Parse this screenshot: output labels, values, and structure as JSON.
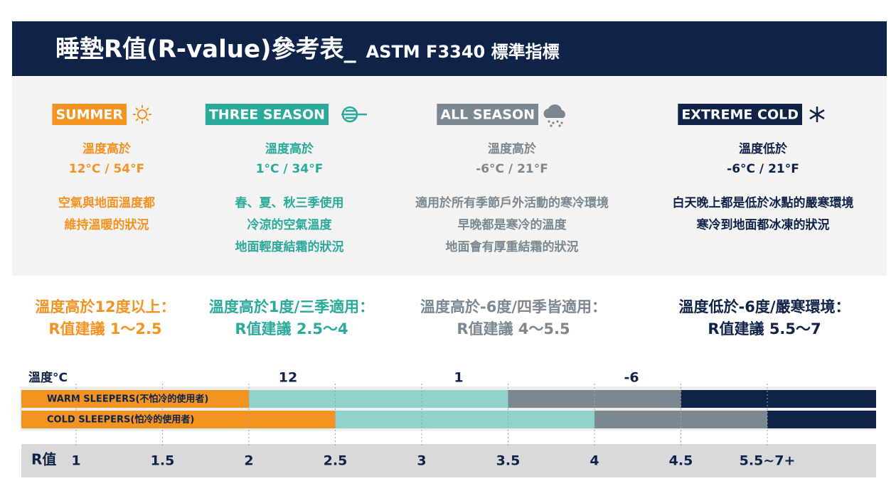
{
  "header": {
    "title": "睡墊R值(R-value)參考表_",
    "subtitle": "ASTM F3340 標準指標"
  },
  "seasons": [
    {
      "badge": "SUMMER",
      "color": "#f39322",
      "temp_label": "溫度高於",
      "temp": "12°C / 54°F",
      "desc": [
        "空氣與地面溫度都",
        "維持溫暖的狀況"
      ]
    },
    {
      "badge": "THREE SEASON",
      "color": "#2aaa9a",
      "temp_label": "溫度高於",
      "temp": "1°C / 34°F",
      "desc": [
        "春、夏、秋三季使用",
        "冷涼的空氣溫度",
        "地面輕度結霜的狀況"
      ]
    },
    {
      "badge": "ALL SEASON",
      "color": "#7b8791",
      "temp_label": "溫度高於",
      "temp": "-6°C / 21°F",
      "desc": [
        "適用於所有季節戶外活動的寒冷環境",
        "早晚都是寒冷的溫度",
        "地面會有厚重結霜的狀況"
      ]
    },
    {
      "badge": "EXTREME COLD",
      "color": "#0f2349",
      "temp_label": "溫度低於",
      "temp": "-6°C / 21°F",
      "desc": [
        "白天晚上都是低於冰點的嚴寒環境",
        "寒冷到地面都冰凍的狀況"
      ]
    }
  ],
  "recommendations": [
    {
      "condition": "溫度高於12度以上：",
      "advice": "R值建議 1〜2.5"
    },
    {
      "condition": "溫度高於1度/三季適用：",
      "advice": "R值建議 2.5〜4"
    },
    {
      "condition": "溫度高於-6度/四季皆適用：",
      "advice": "R值建議 4〜5.5"
    },
    {
      "condition": "溫度低於-6度/嚴寒環境：",
      "advice": "R值建議 5.5〜7"
    }
  ],
  "scale": {
    "temp_title": "溫度°C",
    "temps": [
      "12",
      "1",
      "-6"
    ],
    "r_title": "R值",
    "rticks": [
      1,
      1.5,
      2,
      2.5,
      3,
      3.5,
      4,
      4.5,
      {
        "value": 5.5,
        "label": "5.5~7+"
      }
    ],
    "segment_colors": [
      "#f39322",
      "#8fd3cc",
      "#7b8791",
      "#0f2349"
    ],
    "bars": [
      {
        "name": "WARM SLEEPERS(不怕冷的使用者)",
        "breaks": [
          2,
          3.5,
          4.5
        ]
      },
      {
        "name": "COLD SLEEPERS(怕冷的使用者)",
        "breaks": [
          2.5,
          4,
          5.5
        ]
      }
    ]
  }
}
